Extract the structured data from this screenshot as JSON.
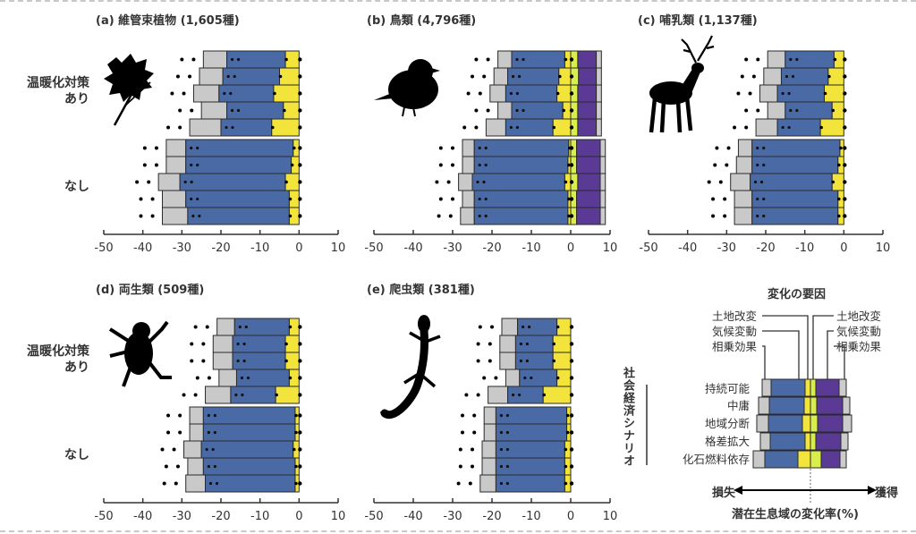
{
  "colors": {
    "synergy": "#c9c9c9",
    "climate_loss": "#4a6aa5",
    "land_loss": "#f2e43a",
    "land_gain": "#d8ee4a",
    "climate_gain": "#5a3a95",
    "synergy_gain": "#cccccc",
    "outline": "#2a2a2a"
  },
  "row_labels": {
    "with_policy": "温暖化対策\nあり",
    "with_policy_l1": "温暖化対策",
    "with_policy_l2": "あり",
    "without_policy": "なし"
  },
  "chart_data": [
    {
      "id": "a",
      "type": "bar",
      "title": "(a) 維管束植物 (1,605種)",
      "xlim": [
        -50,
        10
      ],
      "xticks": [
        -50,
        -40,
        -30,
        -20,
        -10,
        0,
        10
      ],
      "icon": "leaf-icon",
      "scenarios": [
        "持続可能",
        "中庸",
        "地域分断",
        "格差拡大",
        "化石燃料依存"
      ],
      "with_policy": {
        "land_loss": [
          -3.5,
          -5.0,
          -6.5,
          -4.0,
          -7.0
        ],
        "climate_loss": [
          -18.5,
          -19.5,
          -20.5,
          -18.5,
          -20.0
        ],
        "synergy_loss": [
          -24.5,
          -25.5,
          -27.0,
          -25.0,
          -28.0
        ]
      },
      "without_policy": {
        "land_loss": [
          -1.5,
          -2.0,
          -3.5,
          -2.5,
          -2.5
        ],
        "climate_loss": [
          -29.0,
          -29.0,
          -30.5,
          -29.0,
          -28.5
        ],
        "synergy_loss": [
          -34.0,
          -34.0,
          -36.0,
          -35.0,
          -35.0
        ]
      }
    },
    {
      "id": "b",
      "type": "bar",
      "title": "(b) 鳥類 (4,796種)",
      "xlim": [
        -50,
        10
      ],
      "xticks": [
        -50,
        -40,
        -30,
        -20,
        -10,
        0,
        10
      ],
      "icon": "bird-icon",
      "scenarios": [
        "持続可能",
        "中庸",
        "地域分断",
        "格差拡大",
        "化石燃料依存"
      ],
      "with_policy": {
        "land_loss": [
          -1.5,
          -3.0,
          -3.5,
          -2.0,
          -4.5
        ],
        "climate_loss": [
          -15.0,
          -16.0,
          -16.5,
          -15.0,
          -16.5
        ],
        "synergy_loss": [
          -18.5,
          -19.5,
          -20.5,
          -18.5,
          -21.5
        ],
        "land_gain": [
          1.8,
          2.0,
          1.8,
          1.8,
          1.8
        ],
        "climate_gain": [
          6.5,
          6.5,
          6.5,
          6.5,
          6.5
        ],
        "synergy_gain": [
          7.8,
          7.8,
          7.8,
          7.8,
          7.8
        ]
      },
      "without_policy": {
        "land_loss": [
          -0.5,
          -0.7,
          -1.5,
          -0.7,
          -0.7
        ],
        "climate_loss": [
          -24.5,
          -24.5,
          -25.0,
          -24.5,
          -24.5
        ],
        "synergy_loss": [
          -27.5,
          -27.5,
          -28.5,
          -27.5,
          -28.0
        ],
        "land_gain": [
          1.5,
          1.5,
          1.8,
          1.5,
          1.5
        ],
        "climate_gain": [
          7.5,
          7.5,
          7.5,
          7.5,
          7.5
        ],
        "synergy_gain": [
          8.8,
          8.8,
          8.8,
          8.8,
          8.8
        ]
      }
    },
    {
      "id": "c",
      "type": "bar",
      "title": "(c) 哺乳類 (1,137種)",
      "xlim": [
        -50,
        10
      ],
      "xticks": [
        -50,
        -40,
        -30,
        -20,
        -10,
        0,
        10
      ],
      "icon": "deer-icon",
      "scenarios": [
        "持続可能",
        "中庸",
        "地域分断",
        "格差拡大",
        "化石燃料依存"
      ],
      "with_policy": {
        "land_loss": [
          -2.5,
          -4.0,
          -5.0,
          -3.0,
          -6.0
        ],
        "climate_loss": [
          -15.0,
          -16.0,
          -17.0,
          -15.0,
          -17.0
        ],
        "synergy_loss": [
          -19.5,
          -20.5,
          -21.5,
          -19.5,
          -22.5
        ]
      },
      "without_policy": {
        "land_loss": [
          -1.0,
          -1.5,
          -3.0,
          -1.5,
          -1.5
        ],
        "climate_loss": [
          -23.5,
          -23.5,
          -24.0,
          -23.5,
          -23.5
        ],
        "synergy_loss": [
          -27.0,
          -27.5,
          -29.0,
          -28.0,
          -28.0
        ]
      }
    },
    {
      "id": "d",
      "type": "bar",
      "title": "(d) 両生類 (509種)",
      "xlim": [
        -50,
        10
      ],
      "xticks": [
        -50,
        -40,
        -30,
        -20,
        -10,
        0,
        10
      ],
      "icon": "frog-icon",
      "scenarios": [
        "持続可能",
        "中庸",
        "地域分断",
        "格差拡大",
        "化石燃料依存"
      ],
      "with_policy": {
        "land_loss": [
          -2.5,
          -3.5,
          -3.5,
          -2.5,
          -6.0
        ],
        "climate_loss": [
          -16.5,
          -17.0,
          -17.0,
          -16.0,
          -17.5
        ],
        "synergy_loss": [
          -21.0,
          -22.0,
          -22.0,
          -20.5,
          -24.0
        ]
      },
      "without_policy": {
        "land_loss": [
          -1.0,
          -1.0,
          -1.5,
          -1.0,
          -1.0
        ],
        "climate_loss": [
          -24.5,
          -24.5,
          -25.0,
          -24.5,
          -24.0
        ],
        "synergy_loss": [
          -28.0,
          -28.0,
          -29.5,
          -28.5,
          -29.0
        ]
      }
    },
    {
      "id": "e",
      "type": "bar",
      "title": "(e) 爬虫類 (381種)",
      "xlim": [
        -50,
        10
      ],
      "xticks": [
        -50,
        -40,
        -30,
        -20,
        -10,
        0,
        10
      ],
      "icon": "gecko-icon",
      "scenarios": [
        "持続可能",
        "中庸",
        "地域分断",
        "格差拡大",
        "化石燃料依存"
      ],
      "with_policy": {
        "land_loss": [
          -3.5,
          -4.5,
          -4.5,
          -3.5,
          -7.0
        ],
        "climate_loss": [
          -13.5,
          -14.0,
          -14.0,
          -13.0,
          -16.0
        ],
        "synergy_loss": [
          -17.5,
          -18.0,
          -18.0,
          -16.5,
          -21.0
        ]
      },
      "without_policy": {
        "land_loss": [
          -1.0,
          -1.0,
          -1.5,
          -1.5,
          -1.5
        ],
        "climate_loss": [
          -19.0,
          -19.0,
          -19.0,
          -19.0,
          -19.0
        ],
        "synergy_loss": [
          -22.0,
          -22.0,
          -22.5,
          -22.5,
          -23.0
        ]
      }
    }
  ],
  "legend": {
    "title": "変化の要因",
    "loss_factors": [
      "土地改変",
      "気候変動",
      "相乗効果"
    ],
    "gain_factors": [
      "土地改変",
      "気候変動",
      "相乗効果"
    ],
    "scenario_title": "社会経済シナリオ",
    "scenarios": [
      "持続可能",
      "中庸",
      "地域分断",
      "格差拡大",
      "化石燃料依存"
    ],
    "loss_label": "損失",
    "gain_label": "獲得",
    "xaxis_label": "潜在生息域の変化率(%)"
  }
}
